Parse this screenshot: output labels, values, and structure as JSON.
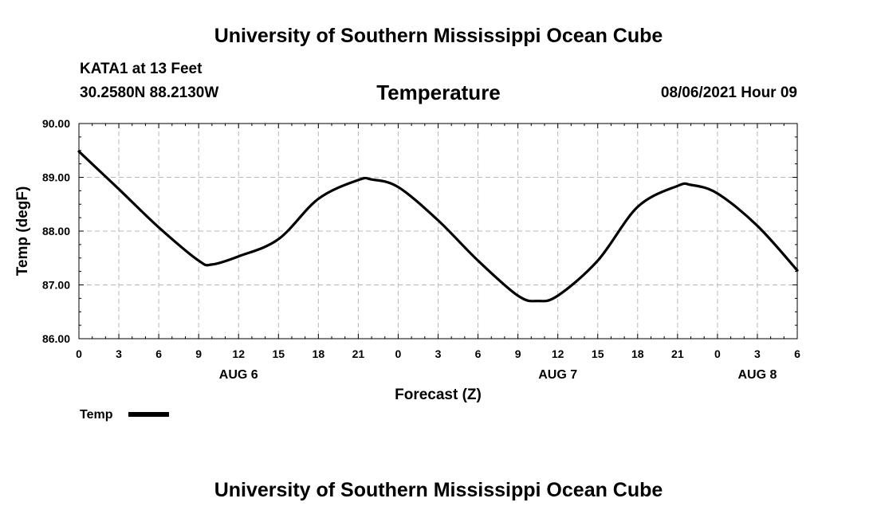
{
  "header": {
    "banner_top": "University of Southern Mississippi Ocean Cube",
    "station": "KATA1 at 13 Feet",
    "coords": "30.2580N  88.2130W",
    "datetime": "08/06/2021 Hour 09",
    "banner_bottom": "University of Southern Mississippi Ocean Cube"
  },
  "chart_data": {
    "type": "line",
    "title": "Temperature",
    "xlabel": "Forecast (Z)",
    "ylabel": "Temp (degF)",
    "xlim": [
      0,
      54
    ],
    "ylim": [
      86.0,
      90.0
    ],
    "yticks": [
      "86.00",
      "87.00",
      "88.00",
      "89.00",
      "90.00"
    ],
    "xticks": [
      {
        "x": 0,
        "label": "0"
      },
      {
        "x": 3,
        "label": "3"
      },
      {
        "x": 6,
        "label": "6"
      },
      {
        "x": 9,
        "label": "9"
      },
      {
        "x": 12,
        "label": "12"
      },
      {
        "x": 15,
        "label": "15"
      },
      {
        "x": 18,
        "label": "18"
      },
      {
        "x": 21,
        "label": "21"
      },
      {
        "x": 24,
        "label": "0"
      },
      {
        "x": 27,
        "label": "3"
      },
      {
        "x": 30,
        "label": "6"
      },
      {
        "x": 33,
        "label": "9"
      },
      {
        "x": 36,
        "label": "12"
      },
      {
        "x": 39,
        "label": "15"
      },
      {
        "x": 42,
        "label": "18"
      },
      {
        "x": 45,
        "label": "21"
      },
      {
        "x": 48,
        "label": "0"
      },
      {
        "x": 51,
        "label": "3"
      },
      {
        "x": 54,
        "label": "6"
      }
    ],
    "day_labels": [
      {
        "x": 12,
        "label": "AUG 6"
      },
      {
        "x": 36,
        "label": "AUG 7"
      },
      {
        "x": 51,
        "label": "AUG 8"
      }
    ],
    "grid": true,
    "legend_position": "bottom-left",
    "series": [
      {
        "name": "Temp",
        "color": "#000000",
        "points": [
          [
            0,
            89.48
          ],
          [
            3,
            88.78
          ],
          [
            6,
            88.07
          ],
          [
            9,
            87.45
          ],
          [
            10,
            87.38
          ],
          [
            12,
            87.53
          ],
          [
            15,
            87.85
          ],
          [
            18,
            88.6
          ],
          [
            21,
            88.95
          ],
          [
            22,
            88.96
          ],
          [
            24,
            88.82
          ],
          [
            27,
            88.2
          ],
          [
            30,
            87.45
          ],
          [
            33,
            86.8
          ],
          [
            34.5,
            86.7
          ],
          [
            36,
            86.8
          ],
          [
            39,
            87.45
          ],
          [
            42,
            88.45
          ],
          [
            45,
            88.84
          ],
          [
            46,
            88.86
          ],
          [
            48,
            88.7
          ],
          [
            51,
            88.1
          ],
          [
            54,
            87.27
          ]
        ]
      }
    ]
  }
}
